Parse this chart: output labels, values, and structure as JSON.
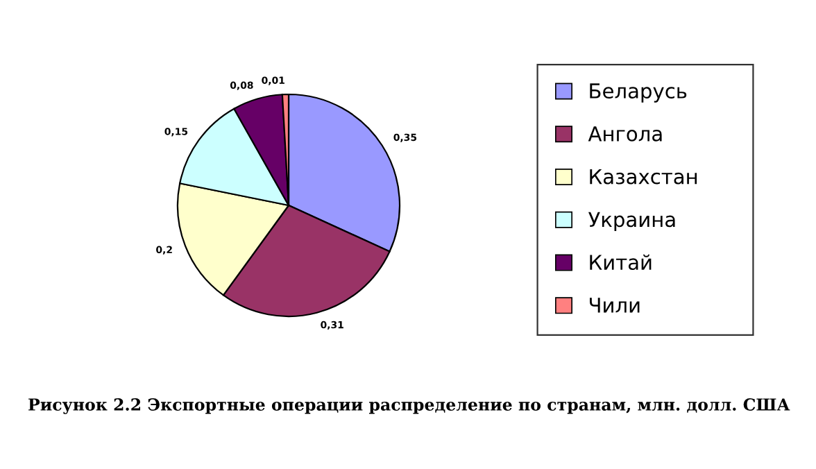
{
  "chart_data": {
    "type": "pie",
    "categories": [
      "Беларусь",
      "Ангола",
      "Казахстан",
      "Украина",
      "Китай",
      "Чили"
    ],
    "values": [
      0.35,
      0.31,
      0.2,
      0.15,
      0.08,
      0.01
    ],
    "value_labels": [
      "0,35",
      "0,31",
      "0,2",
      "0,15",
      "0,08",
      "0,01"
    ],
    "colors": [
      "#9999ff",
      "#993366",
      "#ffffcc",
      "#ccffff",
      "#660066",
      "#ff8080"
    ],
    "legend": "right",
    "annotations": [
      "Рисунок 2.2 Экспортные операции распределение по странам, млн. долл. США"
    ]
  }
}
